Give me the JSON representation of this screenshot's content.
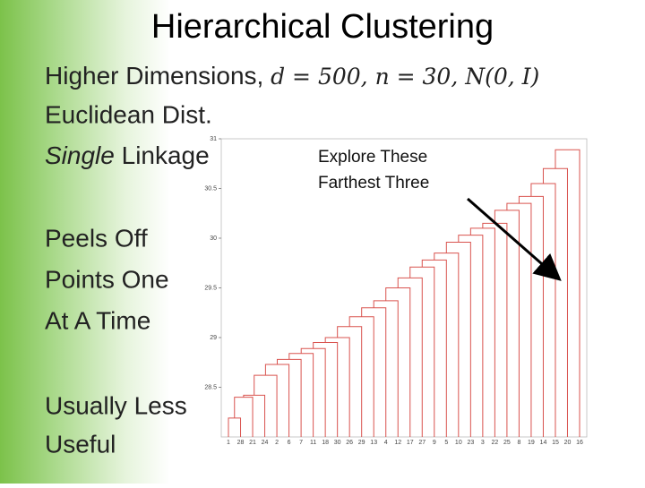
{
  "title": "Hierarchical Clustering",
  "lines": [
    {
      "text": "Higher Dimensions, ",
      "math": "d = 500, n = 30, N(0, I)"
    },
    {
      "text": "Euclidean Dist."
    },
    {
      "italic": "Single",
      "text": " Linkage"
    },
    {
      "text": "Peels Off"
    },
    {
      "text": "Points One"
    },
    {
      "text": "At A Time"
    },
    {
      "text": "Usually Less"
    },
    {
      "text": "Useful"
    }
  ],
  "annotation": [
    "Explore These",
    "Farthest Three"
  ],
  "chart_data": {
    "type": "dendrogram",
    "categories": [
      "1",
      "28",
      "21",
      "24",
      "2",
      "6",
      "7",
      "11",
      "18",
      "30",
      "26",
      "29",
      "13",
      "4",
      "12",
      "17",
      "27",
      "9",
      "5",
      "10",
      "23",
      "3",
      "22",
      "25",
      "8",
      "19",
      "14",
      "15",
      "20",
      "16"
    ],
    "values": [
      null,
      28.19,
      28.4,
      28.42,
      28.62,
      28.73,
      28.78,
      28.84,
      28.89,
      28.95,
      29.0,
      29.11,
      29.21,
      29.3,
      29.37,
      29.5,
      29.6,
      29.71,
      29.78,
      29.85,
      29.96,
      30.03,
      30.1,
      30.15,
      30.28,
      30.35,
      30.42,
      30.55,
      30.7,
      30.89
    ],
    "ylim": [
      28,
      31
    ],
    "yticks": [
      28.5,
      29,
      29.5,
      30,
      30.5,
      31
    ],
    "color": "#d9534f"
  }
}
